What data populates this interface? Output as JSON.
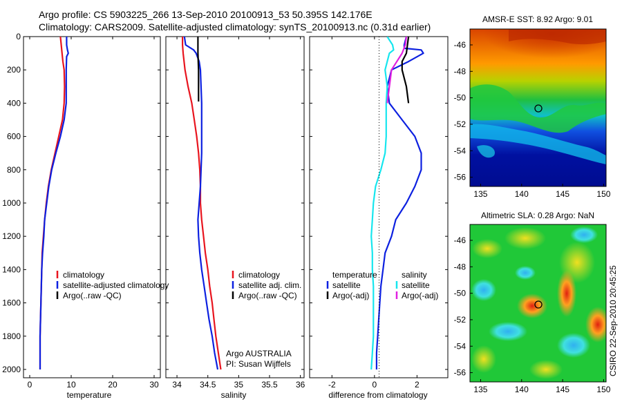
{
  "header": {
    "title_line1": "Argo profile: CS 5903225_266 13-Sep-2010 20100913_53 50.395S 142.176E",
    "title_line2": "Climatology: CARS2009. Satellite-adjusted climatology: synTS_20100913.nc (0.31d earlier)"
  },
  "colors": {
    "climatology": "#e8141e",
    "satellite": "#0c20e0",
    "argo": "#000000",
    "sal_satellite": "#16e6ee",
    "sal_argo": "#e020e0"
  },
  "chart_data": [
    {
      "id": "temperature",
      "type": "line",
      "xlabel": "temperature",
      "ylabel": "",
      "xlim": [
        -1.5,
        31.5
      ],
      "ylim": [
        2050,
        0
      ],
      "y_reversed": true,
      "xticks": [
        0,
        10,
        20,
        30
      ],
      "yticks": [
        0,
        200,
        400,
        600,
        800,
        1000,
        1200,
        1400,
        1600,
        1800,
        2000
      ],
      "legend": [
        "climatology",
        "satellite-adjusted climatology",
        "Argo(..raw -QC)"
      ],
      "series": [
        {
          "name": "climatology",
          "color_key": "climatology",
          "points": [
            [
              7.4,
              0
            ],
            [
              7.6,
              50
            ],
            [
              7.8,
              100
            ],
            [
              8.0,
              150
            ],
            [
              8.3,
              200
            ],
            [
              8.4,
              300
            ],
            [
              8.3,
              400
            ],
            [
              7.9,
              500
            ],
            [
              7.0,
              600
            ],
            [
              6.1,
              700
            ],
            [
              5.2,
              800
            ],
            [
              4.5,
              900
            ],
            [
              4.0,
              1000
            ],
            [
              3.6,
              1100
            ],
            [
              3.3,
              1200
            ],
            [
              3.0,
              1300
            ],
            [
              2.9,
              1400
            ],
            [
              2.8,
              1500
            ],
            [
              2.7,
              1600
            ],
            [
              2.6,
              1700
            ],
            [
              2.5,
              1800
            ],
            [
              2.5,
              1900
            ],
            [
              2.5,
              2000
            ]
          ]
        },
        {
          "name": "satellite-adjusted climatology",
          "color_key": "satellite",
          "points": [
            [
              8.9,
              0
            ],
            [
              8.9,
              50
            ],
            [
              9.1,
              80
            ],
            [
              9.3,
              100
            ],
            [
              8.9,
              120
            ],
            [
              8.8,
              200
            ],
            [
              8.8,
              300
            ],
            [
              8.8,
              400
            ],
            [
              8.3,
              500
            ],
            [
              7.4,
              600
            ],
            [
              6.3,
              700
            ],
            [
              5.3,
              800
            ],
            [
              4.6,
              900
            ],
            [
              4.1,
              1000
            ],
            [
              3.6,
              1100
            ],
            [
              3.4,
              1200
            ],
            [
              3.1,
              1300
            ],
            [
              2.9,
              1400
            ],
            [
              2.8,
              1500
            ],
            [
              2.7,
              1600
            ],
            [
              2.6,
              1700
            ],
            [
              2.5,
              1800
            ],
            [
              2.5,
              1900
            ],
            [
              2.5,
              2000
            ]
          ]
        },
        {
          "name": "Argo(..raw -QC)",
          "color_key": "argo",
          "points": []
        }
      ]
    },
    {
      "id": "salinity",
      "type": "line",
      "xlabel": "salinity",
      "ylabel": "",
      "xlim": [
        33.82,
        36.06
      ],
      "ylim": [
        2050,
        0
      ],
      "y_reversed": true,
      "xticks": [
        34,
        34.5,
        35,
        35.5,
        36
      ],
      "legend": [
        "climatology",
        "satellite adj. clim.",
        "Argo(..raw -QC)"
      ],
      "series": [
        {
          "name": "climatology",
          "color_key": "climatology",
          "points": [
            [
              34.09,
              0
            ],
            [
              34.09,
              50
            ],
            [
              34.1,
              100
            ],
            [
              34.13,
              200
            ],
            [
              34.18,
              300
            ],
            [
              34.24,
              400
            ],
            [
              34.28,
              500
            ],
            [
              34.32,
              600
            ],
            [
              34.35,
              700
            ],
            [
              34.37,
              800
            ],
            [
              34.38,
              900
            ],
            [
              34.38,
              1000
            ],
            [
              34.4,
              1100
            ],
            [
              34.43,
              1200
            ],
            [
              34.46,
              1300
            ],
            [
              34.5,
              1400
            ],
            [
              34.53,
              1500
            ],
            [
              34.57,
              1600
            ],
            [
              34.6,
              1700
            ],
            [
              34.63,
              1800
            ],
            [
              34.67,
              1900
            ],
            [
              34.71,
              2000
            ]
          ]
        },
        {
          "name": "satellite adj. clim.",
          "color_key": "satellite",
          "points": [
            [
              34.12,
              0
            ],
            [
              34.14,
              50
            ],
            [
              34.27,
              80
            ],
            [
              34.31,
              100
            ],
            [
              34.36,
              150
            ],
            [
              34.38,
              200
            ],
            [
              34.39,
              300
            ],
            [
              34.4,
              400
            ],
            [
              34.4,
              500
            ],
            [
              34.4,
              600
            ],
            [
              34.4,
              700
            ],
            [
              34.39,
              800
            ],
            [
              34.38,
              900
            ],
            [
              34.36,
              1000
            ],
            [
              34.34,
              1100
            ],
            [
              34.35,
              1200
            ],
            [
              34.37,
              1300
            ],
            [
              34.4,
              1400
            ],
            [
              34.44,
              1500
            ],
            [
              34.48,
              1600
            ],
            [
              34.52,
              1700
            ],
            [
              34.57,
              1800
            ],
            [
              34.61,
              1900
            ],
            [
              34.66,
              2000
            ]
          ]
        },
        {
          "name": "Argo(..raw -QC)",
          "color_key": "argo",
          "points": [
            [
              34.34,
              0
            ],
            [
              34.34,
              100
            ],
            [
              34.35,
              200
            ],
            [
              34.35,
              300
            ],
            [
              34.35,
              390
            ]
          ]
        }
      ],
      "annotation": [
        "Argo AUSTRALIA",
        "PI: Susan Wijffels"
      ]
    },
    {
      "id": "difference",
      "type": "line",
      "xlabel": "difference from climatology",
      "ylabel": "",
      "xlim": [
        -3.05,
        3.45
      ],
      "ylim": [
        2050,
        0
      ],
      "y_reversed": true,
      "xticks": [
        -2,
        0,
        2
      ],
      "legend": [
        "temperature",
        "satellite",
        "Argo(-adj)",
        "salinity",
        "satellite",
        "Argo(-adj)"
      ],
      "series": [
        {
          "name": "temperature satellite",
          "color_key": "satellite",
          "points": [
            [
              1.5,
              0
            ],
            [
              1.4,
              50
            ],
            [
              1.4,
              70
            ],
            [
              2.2,
              80
            ],
            [
              2.3,
              100
            ],
            [
              1.6,
              150
            ],
            [
              0.8,
              200
            ],
            [
              0.6,
              300
            ],
            [
              0.7,
              400
            ],
            [
              1.3,
              500
            ],
            [
              1.9,
              600
            ],
            [
              2.2,
              700
            ],
            [
              2.2,
              800
            ],
            [
              1.9,
              900
            ],
            [
              1.5,
              1000
            ],
            [
              1.0,
              1100
            ],
            [
              0.8,
              1200
            ],
            [
              0.5,
              1300
            ],
            [
              0.4,
              1400
            ],
            [
              0.3,
              1500
            ],
            [
              0.25,
              1600
            ],
            [
              0.2,
              1700
            ],
            [
              0.15,
              1800
            ],
            [
              0.1,
              1900
            ],
            [
              0.1,
              2000
            ]
          ]
        },
        {
          "name": "temperature Argo(-adj)",
          "color_key": "argo",
          "points": [
            [
              1.6,
              0
            ],
            [
              1.5,
              100
            ],
            [
              1.3,
              150
            ],
            [
              1.3,
              200
            ],
            [
              1.5,
              300
            ],
            [
              1.6,
              400
            ]
          ]
        },
        {
          "name": "salinity satellite",
          "color_key": "sal_satellite",
          "points": [
            [
              0.6,
              0
            ],
            [
              0.85,
              50
            ],
            [
              0.9,
              80
            ],
            [
              0.7,
              100
            ],
            [
              0.5,
              200
            ],
            [
              0.6,
              300
            ],
            [
              0.55,
              400
            ],
            [
              0.55,
              500
            ],
            [
              0.55,
              600
            ],
            [
              0.5,
              700
            ],
            [
              0.3,
              800
            ],
            [
              0.05,
              900
            ],
            [
              -0.05,
              1000
            ],
            [
              -0.1,
              1100
            ],
            [
              -0.15,
              1200
            ],
            [
              -0.1,
              1300
            ],
            [
              -0.1,
              1400
            ],
            [
              -0.05,
              1500
            ],
            [
              -0.05,
              1600
            ],
            [
              -0.05,
              1700
            ],
            [
              -0.05,
              1800
            ],
            [
              -0.1,
              1900
            ],
            [
              -0.15,
              2000
            ]
          ]
        },
        {
          "name": "salinity Argo(-adj)",
          "color_key": "sal_argo",
          "points": [
            [
              1.5,
              0
            ],
            [
              1.45,
              50
            ],
            [
              1.3,
              100
            ],
            [
              0.8,
              200
            ],
            [
              0.7,
              300
            ],
            [
              0.6,
              400
            ]
          ]
        }
      ]
    }
  ],
  "maps": [
    {
      "id": "sst",
      "title": "AMSR-E SST: 8.92 Argo: 9.01",
      "xticks": [
        "135",
        "140",
        "145",
        "150"
      ],
      "yticks": [
        "-46",
        "-48",
        "-50",
        "-52",
        "-54",
        "-56"
      ],
      "argo_marker": {
        "lon": 142.2,
        "lat": -50.4
      }
    },
    {
      "id": "sla",
      "title": "Altimetric SLA: 0.28 Argo: NaN",
      "xticks": [
        "135",
        "140",
        "145",
        "150"
      ],
      "yticks": [
        "-46",
        "-48",
        "-50",
        "-52",
        "-54",
        "-56"
      ],
      "argo_marker": {
        "lon": 142.2,
        "lat": -50.4
      }
    }
  ],
  "credit": "CSIRO 22-Sep-2010 20:45:25"
}
